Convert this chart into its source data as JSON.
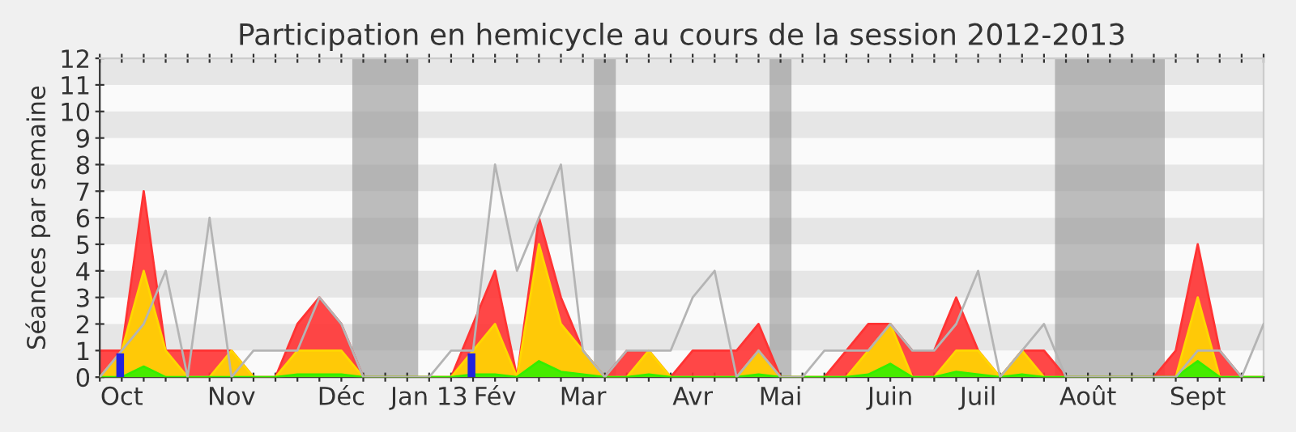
{
  "chart_data": {
    "type": "area",
    "title": "Participation en hemicycle au cours de la session 2012-2013",
    "ylabel": "Séances par semaine",
    "x": [
      "2012-10-01",
      "2012-10-08",
      "2012-10-15",
      "2012-10-22",
      "2012-10-29",
      "2012-11-05",
      "2012-11-12",
      "2012-11-19",
      "2012-11-26",
      "2012-12-03",
      "2012-12-10",
      "2012-12-17",
      "2012-12-24",
      "2012-12-31",
      "2013-01-07",
      "2013-01-14",
      "2013-01-21",
      "2013-01-28",
      "2013-02-04",
      "2013-02-11",
      "2013-02-18",
      "2013-02-25",
      "2013-03-04",
      "2013-03-11",
      "2013-03-18",
      "2013-03-25",
      "2013-04-01",
      "2013-04-08",
      "2013-04-15",
      "2013-04-22",
      "2013-04-29",
      "2013-05-06",
      "2013-05-13",
      "2013-05-20",
      "2013-05-27",
      "2013-06-03",
      "2013-06-10",
      "2013-06-17",
      "2013-06-24",
      "2013-07-01",
      "2013-07-08",
      "2013-07-15",
      "2013-07-22",
      "2013-07-29",
      "2013-08-05",
      "2013-08-12",
      "2013-08-19",
      "2013-08-26",
      "2013-09-02",
      "2013-09-09",
      "2013-09-16",
      "2013-09-23",
      "2013-09-30",
      "2013-10-07"
    ],
    "series": [
      {
        "color": "#ff3333",
        "values": [
          1,
          1,
          7,
          1,
          1,
          1,
          1,
          0,
          0,
          2,
          3,
          2,
          0,
          0,
          0,
          0,
          0,
          2,
          4,
          0,
          6,
          3,
          1,
          0,
          1,
          1,
          0,
          1,
          1,
          1,
          2,
          0,
          0,
          0,
          1,
          2,
          2,
          1,
          1,
          3,
          1,
          0,
          1,
          1,
          0,
          0,
          0,
          0,
          0,
          1,
          5,
          1,
          0,
          0
        ]
      },
      {
        "color": "#ffd700",
        "values": [
          0,
          1,
          4,
          1,
          0,
          0,
          1,
          0,
          0,
          1,
          1,
          1,
          0,
          0,
          0,
          0,
          0,
          1,
          2,
          0,
          5,
          2,
          1,
          0,
          0,
          1,
          0,
          0,
          0,
          0,
          1,
          0,
          0,
          0,
          0,
          1,
          2,
          0,
          0,
          1,
          1,
          0,
          1,
          0,
          0,
          0,
          0,
          0,
          0,
          0,
          3,
          0,
          0,
          0
        ]
      },
      {
        "color": "#33ee00",
        "values": [
          0,
          0,
          0.4,
          0,
          0,
          0,
          0,
          0,
          0,
          0.1,
          0.1,
          0.1,
          0,
          0,
          0,
          0,
          0,
          0.1,
          0.1,
          0,
          0.6,
          0.2,
          0.1,
          0,
          0,
          0.1,
          0,
          0,
          0,
          0,
          0.1,
          0,
          0,
          0,
          0,
          0.1,
          0.5,
          0,
          0,
          0.2,
          0.1,
          0,
          0.1,
          0,
          0,
          0,
          0,
          0,
          0,
          0,
          0.6,
          0,
          0,
          0
        ]
      },
      {
        "type": "line",
        "color": "#b4b4b4",
        "values": [
          0,
          1,
          2,
          4,
          0,
          6,
          0,
          1,
          1,
          1,
          3,
          2,
          0,
          0,
          0,
          0,
          1,
          1,
          8,
          4,
          6,
          8,
          1,
          0,
          1,
          1,
          1,
          3,
          4,
          0,
          1,
          0,
          0,
          1,
          1,
          1,
          2,
          1,
          1,
          2,
          4,
          0,
          1,
          2,
          0,
          0,
          0,
          0,
          0,
          0,
          1,
          1,
          0,
          2
        ]
      },
      {
        "type": "bar",
        "color": "#2222dd",
        "x": [
          "2012-10-07T12:00",
          "2013-01-27T12:00"
        ],
        "values": [
          0.9,
          0.9
        ]
      }
    ],
    "xlim": [
      "2012-10-01",
      "2013-10-07"
    ],
    "xticks": [
      {
        "value": "2012-10-08",
        "label": "Oct"
      },
      {
        "value": "2012-11-12",
        "label": "Nov"
      },
      {
        "value": "2012-12-17",
        "label": "Déc"
      },
      {
        "value": "2013-01-14",
        "label": "Jan 13"
      },
      {
        "value": "2013-02-04",
        "label": "Fév"
      },
      {
        "value": "2013-03-04",
        "label": "Mar"
      },
      {
        "value": "2013-04-08",
        "label": "Avr"
      },
      {
        "value": "2013-05-06",
        "label": "Mai"
      },
      {
        "value": "2013-06-10",
        "label": "Juin"
      },
      {
        "value": "2013-07-08",
        "label": "Juil"
      },
      {
        "value": "2013-08-12",
        "label": "Août"
      },
      {
        "value": "2013-09-16",
        "label": "Sept"
      },
      {
        "value": "2012-10-01",
        "label": null
      },
      {
        "value": "2012-10-15",
        "label": null
      },
      {
        "value": "2012-10-22",
        "label": null
      },
      {
        "value": "2012-10-29",
        "label": null
      },
      {
        "value": "2012-11-05",
        "label": null
      },
      {
        "value": "2012-11-19",
        "label": null
      },
      {
        "value": "2012-11-26",
        "label": null
      },
      {
        "value": "2012-12-03",
        "label": null
      },
      {
        "value": "2012-12-10",
        "label": null
      },
      {
        "value": "2012-12-24",
        "label": null
      },
      {
        "value": "2012-12-31",
        "label": null
      },
      {
        "value": "2013-01-07",
        "label": null
      },
      {
        "value": "2013-01-21",
        "label": null
      },
      {
        "value": "2013-01-28",
        "label": null
      },
      {
        "value": "2013-02-11",
        "label": null
      },
      {
        "value": "2013-02-18",
        "label": null
      },
      {
        "value": "2013-02-25",
        "label": null
      },
      {
        "value": "2013-03-11",
        "label": null
      },
      {
        "value": "2013-03-18",
        "label": null
      },
      {
        "value": "2013-03-25",
        "label": null
      },
      {
        "value": "2013-04-01",
        "label": null
      },
      {
        "value": "2013-04-15",
        "label": null
      },
      {
        "value": "2013-04-22",
        "label": null
      },
      {
        "value": "2013-04-29",
        "label": null
      },
      {
        "value": "2013-05-13",
        "label": null
      },
      {
        "value": "2013-05-20",
        "label": null
      },
      {
        "value": "2013-05-27",
        "label": null
      },
      {
        "value": "2013-06-03",
        "label": null
      },
      {
        "value": "2013-06-17",
        "label": null
      },
      {
        "value": "2013-06-24",
        "label": null
      },
      {
        "value": "2013-07-01",
        "label": null
      },
      {
        "value": "2013-07-15",
        "label": null
      },
      {
        "value": "2013-07-22",
        "label": null
      },
      {
        "value": "2013-07-29",
        "label": null
      },
      {
        "value": "2013-08-05",
        "label": null
      },
      {
        "value": "2013-08-19",
        "label": null
      },
      {
        "value": "2013-08-26",
        "label": null
      },
      {
        "value": "2013-09-02",
        "label": null
      },
      {
        "value": "2013-09-09",
        "label": null
      },
      {
        "value": "2013-09-23",
        "label": null
      },
      {
        "value": "2013-09-30",
        "label": null
      },
      {
        "value": "2013-10-07",
        "label": null
      }
    ],
    "ylim": [
      0,
      12
    ],
    "yticks": [
      0,
      1,
      2,
      3,
      4,
      5,
      6,
      7,
      8,
      9,
      10,
      11,
      12
    ],
    "bands": [
      {
        "axis": "y",
        "from": 11,
        "to": 12,
        "color": "#d9d9d9"
      },
      {
        "axis": "y",
        "from": 9,
        "to": 10,
        "color": "#d9d9d9"
      },
      {
        "axis": "y",
        "from": 7,
        "to": 8,
        "color": "#d9d9d9"
      },
      {
        "axis": "y",
        "from": 5,
        "to": 6,
        "color": "#d9d9d9"
      },
      {
        "axis": "y",
        "from": 3,
        "to": 4,
        "color": "#d9d9d9"
      },
      {
        "axis": "y",
        "from": 1,
        "to": 2,
        "color": "#d9d9d9"
      },
      {
        "axis": "x",
        "from": "2012-12-20T12:00",
        "to": "2013-01-10T12:00",
        "color": "#939393"
      },
      {
        "axis": "x",
        "from": "2013-03-07T12:00",
        "to": "2013-03-14T12:00",
        "color": "#939393"
      },
      {
        "axis": "x",
        "from": "2013-05-02T12:00",
        "to": "2013-05-09T12:00",
        "color": "#939393"
      },
      {
        "axis": "x",
        "from": "2013-08-01T12:00",
        "to": "2013-09-05T12:00",
        "color": "#939393"
      }
    ],
    "grid": false,
    "legend": false
  }
}
